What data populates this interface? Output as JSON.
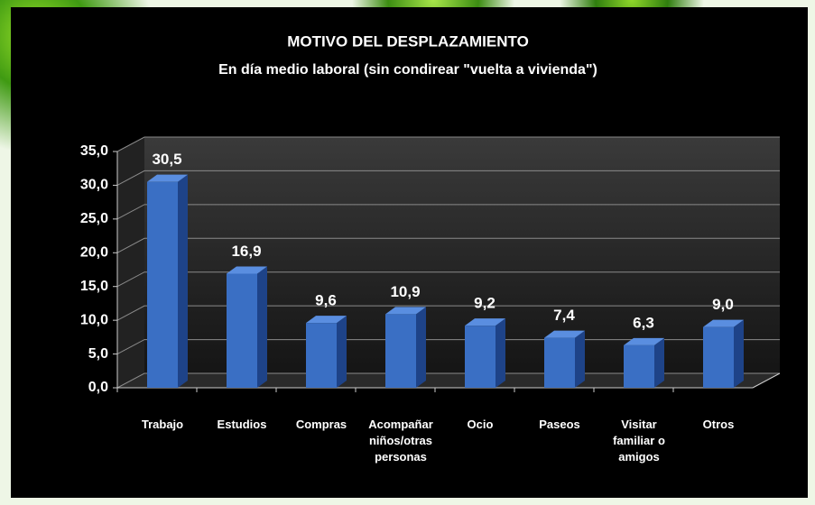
{
  "chart_data": {
    "type": "bar3d",
    "title": "MOTIVO DEL DESPLAZAMIENTO",
    "subtitle": "En día medio laboral (sin condirear \"vuelta a vivienda\")",
    "categories": [
      "Trabajo",
      "Estudios",
      "Compras",
      "Acompañar niños/otras personas",
      "Ocio",
      "Paseos",
      "Visitar familiar o amigos",
      "Otros"
    ],
    "values": [
      30.5,
      16.9,
      9.6,
      10.9,
      9.2,
      7.4,
      6.3,
      9.0
    ],
    "value_labels": [
      "30,5",
      "16,9",
      "9,6",
      "10,9",
      "9,2",
      "7,4",
      "6,3",
      "9,0"
    ],
    "color": "#3a6fc4",
    "ylim": [
      0,
      35
    ],
    "yticks": [
      {
        "value": 0,
        "label": "0,0"
      },
      {
        "value": 5,
        "label": "5,0"
      },
      {
        "value": 10,
        "label": "10,0"
      },
      {
        "value": 15,
        "label": "15,0"
      },
      {
        "value": 20,
        "label": "20,0"
      },
      {
        "value": 25,
        "label": "25,0"
      },
      {
        "value": 30,
        "label": "30,0"
      },
      {
        "value": 35,
        "label": "35,0"
      }
    ],
    "grid": true
  }
}
